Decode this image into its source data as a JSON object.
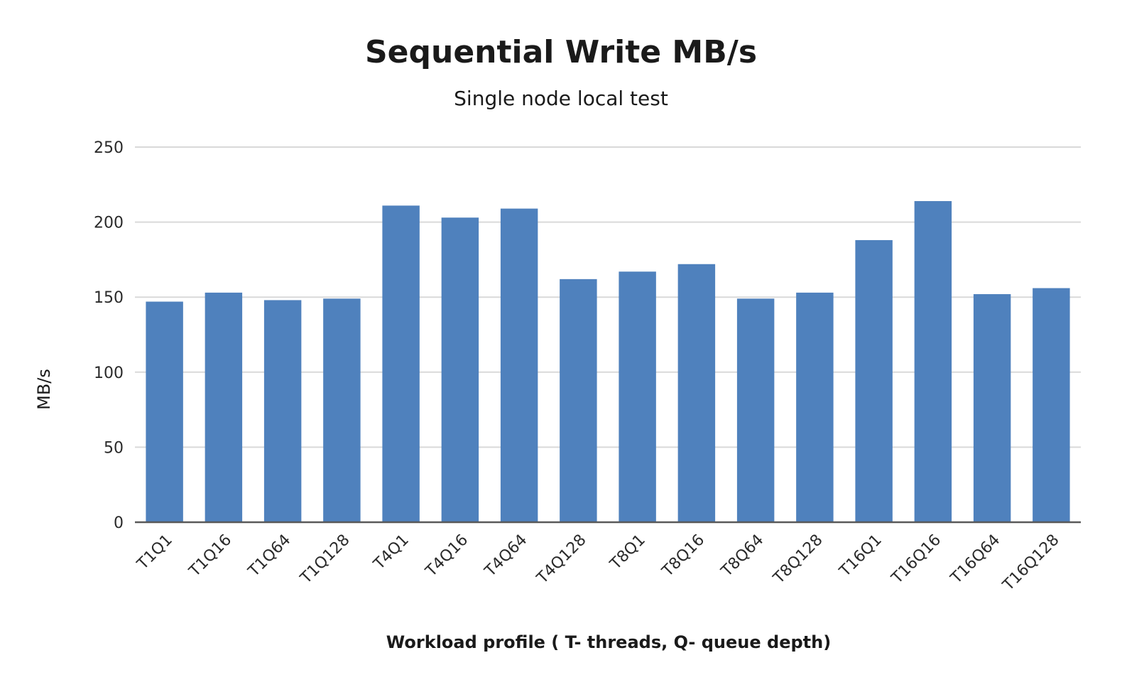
{
  "chart_data": {
    "type": "bar",
    "title": "Sequential Write MB/s",
    "subtitle": "Single node local test",
    "xlabel": "Workload profile ( T- threads, Q- queue depth)",
    "ylabel": "MB/s",
    "ylim": [
      0,
      250
    ],
    "yticks": [
      0,
      50,
      100,
      150,
      200,
      250
    ],
    "grid": true,
    "legend": "none",
    "bar_color": "#4f81bd",
    "categories": [
      "T1Q1",
      "T1Q16",
      "T1Q64",
      "T1Q128",
      "T4Q1",
      "T4Q16",
      "T4Q64",
      "T4Q128",
      "T8Q1",
      "T8Q16",
      "T8Q64",
      "T8Q128",
      "T16Q1",
      "T16Q16",
      "T16Q64",
      "T16Q128"
    ],
    "values": [
      147,
      153,
      148,
      149,
      211,
      203,
      209,
      162,
      167,
      172,
      149,
      153,
      188,
      214,
      152,
      156
    ]
  }
}
